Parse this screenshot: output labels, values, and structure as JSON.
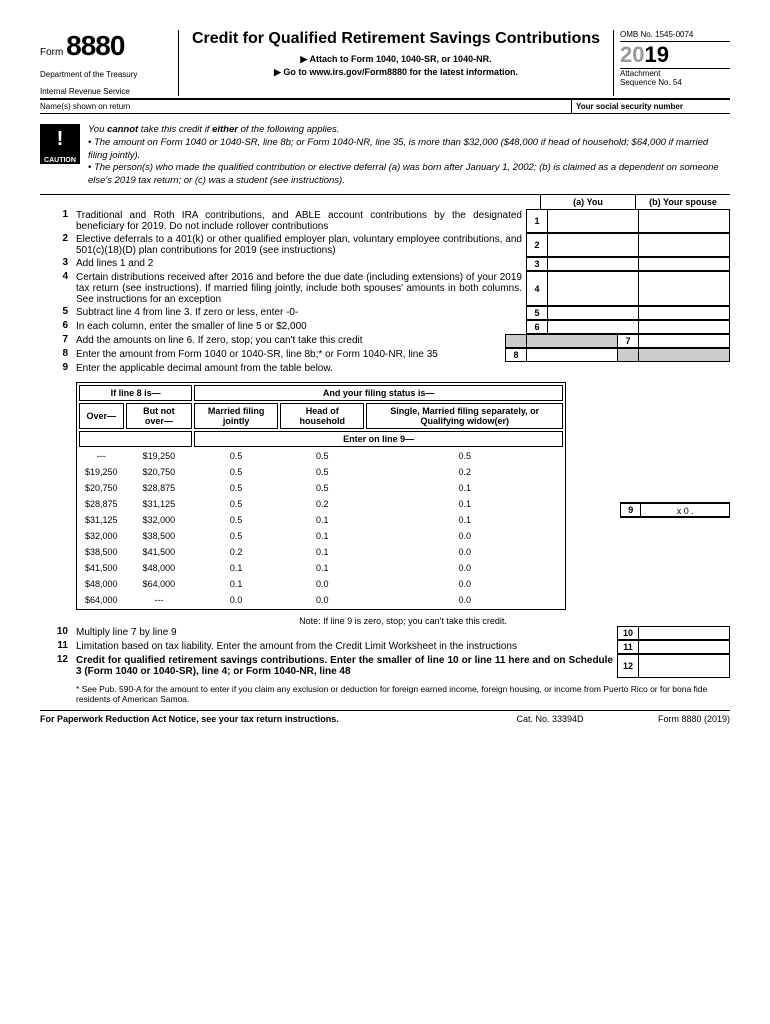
{
  "header": {
    "form_word": "Form",
    "form_number": "8880",
    "title": "Credit for Qualified Retirement Savings Contributions",
    "attach": "▶ Attach to Form 1040, 1040-SR, or 1040-NR.",
    "goto": "▶ Go to www.irs.gov/Form8880 for the latest information.",
    "dept1": "Department of the Treasury",
    "dept2": "Internal Revenue Service",
    "omb": "OMB No. 1545-0074",
    "year_grey": "20",
    "year": "19",
    "att1": "Attachment",
    "att2": "Sequence No. 54",
    "name_label": "Name(s) shown on return",
    "ssn_label": "Your social security number"
  },
  "caution": {
    "label": "CAUTION",
    "lead": "You cannot take this credit if either of the following applies.",
    "b1": "• The amount on Form 1040 or 1040-SR, line 8b; or Form 1040-NR, line 35, is more than $32,000 ($48,000 if head of household; $64,000 if married filing jointly).",
    "b2": "• The person(s) who made the qualified contribution or elective deferral (a) was born after January 1, 2002; (b) is claimed as a dependent on someone else's 2019 tax return; or (c) was a student (see instructions)."
  },
  "cols": {
    "a": "(a) You",
    "b": "(b) Your spouse"
  },
  "lines": {
    "l1": "Traditional and Roth IRA contributions, and ABLE account contributions by the designated beneficiary for 2019. Do not include rollover contributions",
    "l2": "Elective deferrals to a 401(k) or other qualified employer plan, voluntary employee contributions, and 501(c)(18)(D) plan contributions for 2019 (see instructions)",
    "l3": "Add lines 1 and 2",
    "l4": "Certain distributions received after 2016 and before the due date (including extensions) of your 2019 tax return (see instructions). If married filing jointly, include both spouses' amounts in both columns.  See instructions for an exception",
    "l5": "Subtract line 4 from line 3. If zero or less, enter -0-",
    "l6": "In each column, enter the smaller of line 5 or $2,000",
    "l7": "Add the amounts on line 6. If zero, stop; you can't take this credit",
    "l8": "Enter the amount from Form 1040 or 1040-SR, line 8b;* or Form 1040-NR, line 35",
    "l9": "Enter the applicable decimal amount from the table below.",
    "l10": "Multiply line 7 by line 9",
    "l11": "Limitation based on tax liability. Enter the amount from the Credit Limit Worksheet in the instructions",
    "l12": "Credit for qualified retirement savings contributions. Enter the smaller of line 10 or line 11 here and on Schedule 3 (Form 1040 or 1040-SR), line 4; or Form 1040-NR, line 48"
  },
  "line9_value": "x 0 .",
  "table": {
    "h1": "If line 8 is—",
    "h2": "And your filing status is—",
    "over": "Over—",
    "notover": "But not over—",
    "c1": "Married filing jointly",
    "c2": "Head of household",
    "c3": "Single, Married filing separately, or Qualifying widow(er)",
    "enter": "Enter on line 9—",
    "rows": [
      [
        "---",
        "$19,250",
        "0.5",
        "0.5",
        "0.5"
      ],
      [
        "$19,250",
        "$20,750",
        "0.5",
        "0.5",
        "0.2"
      ],
      [
        "$20,750",
        "$28,875",
        "0.5",
        "0.5",
        "0.1"
      ],
      [
        "$28,875",
        "$31,125",
        "0.5",
        "0.2",
        "0.1"
      ],
      [
        "$31,125",
        "$32,000",
        "0.5",
        "0.1",
        "0.1"
      ],
      [
        "$32,000",
        "$38,500",
        "0.5",
        "0.1",
        "0.0"
      ],
      [
        "$38,500",
        "$41,500",
        "0.2",
        "0.1",
        "0.0"
      ],
      [
        "$41,500",
        "$48,000",
        "0.1",
        "0.1",
        "0.0"
      ],
      [
        "$48,000",
        "$64,000",
        "0.1",
        "0.0",
        "0.0"
      ],
      [
        "$64,000",
        "---",
        "0.0",
        "0.0",
        "0.0"
      ]
    ],
    "note": "Note: If line 9 is zero, stop; you can't take this credit."
  },
  "footnote": "* See Pub. 590-A for the amount to enter if you claim any exclusion or deduction for foreign earned income, foreign housing, or income from Puerto Rico or for bona fide residents of American Samoa.",
  "footer": {
    "left": "For Paperwork Reduction Act Notice, see your tax return instructions.",
    "center": "Cat. No. 33394D",
    "right": "Form 8880 (2019)"
  }
}
